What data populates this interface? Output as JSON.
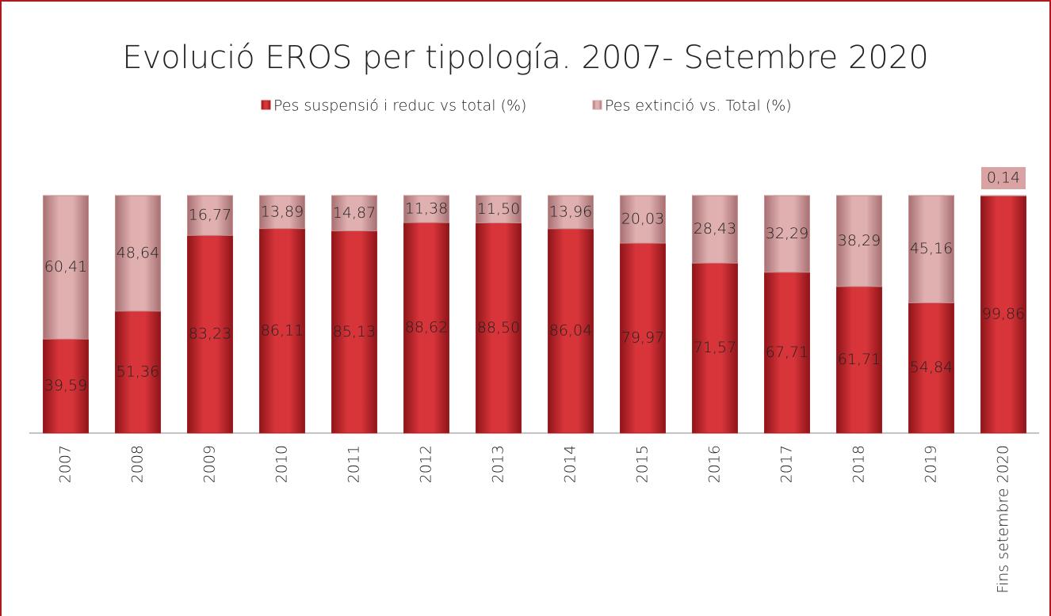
{
  "chart_data": {
    "type": "stacked-bar",
    "title": "Evolució EROS per tipología. 2007- Setembre 2020",
    "categories": [
      "2007",
      "2008",
      "2009",
      "2010",
      "2011",
      "2012",
      "2013",
      "2014",
      "2015",
      "2016",
      "2017",
      "2018",
      "2019",
      "Fins setembre 2020"
    ],
    "series": [
      {
        "name": "Pes suspensió i reduc vs total (%)",
        "color": "#c4262c",
        "values": [
          39.59,
          51.36,
          83.23,
          86.11,
          85.13,
          88.62,
          88.5,
          86.04,
          79.97,
          71.57,
          67.71,
          61.71,
          54.84,
          99.86
        ],
        "value_labels": [
          "39,59",
          "51,36",
          "83,23",
          "86,11",
          "85,13",
          "88,62",
          "88,50",
          "86,04",
          "79,97",
          "71,57",
          "67,71",
          "61,71",
          "54,84",
          "99,86"
        ]
      },
      {
        "name": "Pes extinció vs. Total (%)",
        "color": "#d9a3a3",
        "values": [
          60.41,
          48.64,
          16.77,
          13.89,
          14.87,
          11.38,
          11.5,
          13.96,
          20.03,
          28.43,
          32.29,
          38.29,
          45.16,
          0.14
        ],
        "value_labels": [
          "60,41",
          "48,64",
          "16,77",
          "13,89",
          "14,87",
          "11,38",
          "11,50",
          "13,96",
          "20,03",
          "28,43",
          "32,29",
          "38,29",
          "45,16",
          "0,14"
        ]
      }
    ],
    "ylim": [
      0,
      100
    ]
  }
}
